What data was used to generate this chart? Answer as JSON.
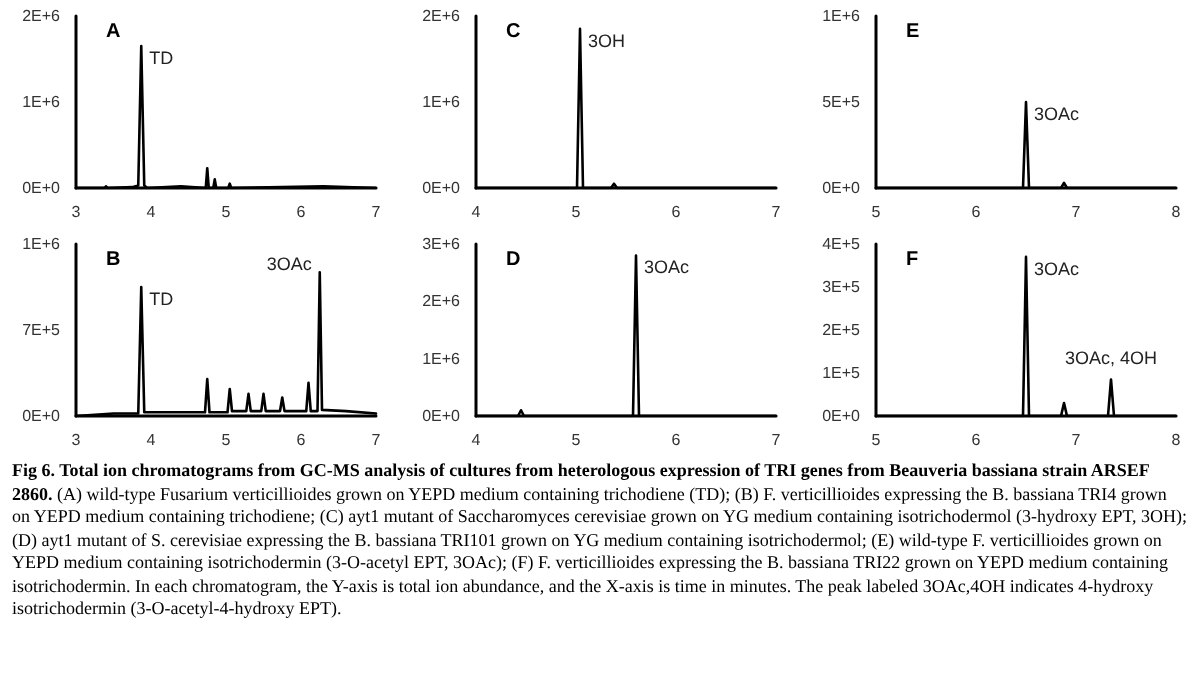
{
  "chart_data": [
    {
      "type": "line",
      "title": "A",
      "x": [
        3,
        3.38,
        3.4,
        3.42,
        3.75,
        3.83,
        3.87,
        3.91,
        3.95,
        4.4,
        4.73,
        4.75,
        4.77,
        4.83,
        4.85,
        4.87,
        5.03,
        5.05,
        5.07,
        6.3,
        7
      ],
      "series": [
        {
          "color": "#000000",
          "values": [
            0,
            0,
            20000,
            0,
            10000,
            30000,
            1650000,
            30000,
            0,
            20000,
            0,
            230000,
            0,
            0,
            100000,
            0,
            0,
            50000,
            0,
            20000,
            0
          ]
        }
      ],
      "xlim": [
        3,
        7
      ],
      "xticks": [
        3,
        4,
        5,
        6,
        7
      ],
      "ylim": [
        0,
        2000000
      ],
      "yticks": [
        {
          "value": 0,
          "label": "0E+0"
        },
        {
          "value": 1000000,
          "label": "1E+6"
        },
        {
          "value": 2000000,
          "label": "2E+6"
        }
      ],
      "annotations": [
        {
          "text": "TD",
          "x": 3.87,
          "y": 1650000
        }
      ],
      "grid": false,
      "marker": "none",
      "line_style": "solid"
    },
    {
      "type": "line",
      "title": "C",
      "x": [
        4,
        5.01,
        5.04,
        5.07,
        5.35,
        5.38,
        5.41,
        7
      ],
      "series": [
        {
          "color": "#000000",
          "values": [
            0,
            0,
            1850000,
            0,
            0,
            50000,
            0,
            0
          ]
        }
      ],
      "xlim": [
        4,
        7
      ],
      "xticks": [
        4,
        5,
        6,
        7
      ],
      "ylim": [
        0,
        2000000
      ],
      "yticks": [
        {
          "value": 0,
          "label": "0E+0"
        },
        {
          "value": 1000000,
          "label": "1E+6"
        },
        {
          "value": 2000000,
          "label": "2E+6"
        }
      ],
      "annotations": [
        {
          "text": "3OH",
          "x": 5.04,
          "y": 1850000
        }
      ],
      "grid": false,
      "marker": "none",
      "line_style": "solid"
    },
    {
      "type": "line",
      "title": "E",
      "x": [
        5,
        6.47,
        6.5,
        6.53,
        6.85,
        6.88,
        6.91,
        8
      ],
      "series": [
        {
          "color": "#000000",
          "values": [
            0,
            0,
            500000,
            0,
            0,
            30000,
            0,
            0
          ]
        }
      ],
      "xlim": [
        5,
        8
      ],
      "xticks": [
        5,
        6,
        7,
        8
      ],
      "ylim": [
        0,
        1000000
      ],
      "yticks": [
        {
          "value": 0,
          "label": "0E+0"
        },
        {
          "value": 500000,
          "label": "5E+5"
        },
        {
          "value": 1000000,
          "label": "1E+6"
        }
      ],
      "annotations": [
        {
          "text": "3OAc",
          "x": 6.5,
          "y": 500000
        }
      ],
      "grid": false,
      "marker": "none",
      "line_style": "solid"
    },
    {
      "type": "line",
      "title": "B",
      "x": [
        3,
        3.5,
        3.83,
        3.87,
        3.91,
        4.72,
        4.75,
        4.78,
        5.02,
        5.05,
        5.08,
        5.27,
        5.3,
        5.33,
        5.47,
        5.5,
        5.53,
        5.72,
        5.75,
        5.78,
        6.07,
        6.1,
        6.13,
        6.22,
        6.25,
        6.28,
        6.6,
        7
      ],
      "series": [
        {
          "color": "#000000",
          "values": [
            0,
            20000,
            20000,
            1050000,
            30000,
            30000,
            300000,
            30000,
            30000,
            220000,
            40000,
            40000,
            180000,
            40000,
            40000,
            180000,
            40000,
            40000,
            150000,
            40000,
            40000,
            270000,
            40000,
            40000,
            1170000,
            50000,
            40000,
            20000
          ]
        }
      ],
      "xlim": [
        3,
        7
      ],
      "xticks": [
        3,
        4,
        5,
        6,
        7
      ],
      "ylim": [
        0,
        1400000
      ],
      "yticks": [
        {
          "value": 0,
          "label": "0E+0"
        },
        {
          "value": 700000,
          "label": "7E+5"
        },
        {
          "value": 1400000,
          "label": "1E+6"
        }
      ],
      "annotations": [
        {
          "text": "TD",
          "x": 3.87,
          "y": 1050000
        },
        {
          "text": "3OAc",
          "x": 6.25,
          "y": 1170000
        }
      ],
      "grid": false,
      "marker": "none",
      "line_style": "solid"
    },
    {
      "type": "line",
      "title": "D",
      "x": [
        4,
        4.42,
        4.45,
        4.48,
        5.57,
        5.6,
        5.63,
        7
      ],
      "series": [
        {
          "color": "#000000",
          "values": [
            0,
            0,
            100000,
            0,
            0,
            2800000,
            0,
            0
          ]
        }
      ],
      "xlim": [
        4,
        7
      ],
      "xticks": [
        4,
        5,
        6,
        7
      ],
      "ylim": [
        0,
        3000000
      ],
      "yticks": [
        {
          "value": 0,
          "label": "0E+0"
        },
        {
          "value": 1000000,
          "label": "1E+6"
        },
        {
          "value": 2000000,
          "label": "2E+6"
        },
        {
          "value": 3000000,
          "label": "3E+6"
        }
      ],
      "annotations": [
        {
          "text": "3OAc",
          "x": 5.6,
          "y": 2800000
        }
      ],
      "grid": false,
      "marker": "none",
      "line_style": "solid"
    },
    {
      "type": "line",
      "title": "F",
      "x": [
        5,
        6.47,
        6.5,
        6.53,
        6.85,
        6.88,
        6.91,
        7.32,
        7.35,
        7.38,
        8
      ],
      "series": [
        {
          "color": "#000000",
          "values": [
            0,
            0,
            370000,
            0,
            0,
            30000,
            0,
            0,
            85000,
            0,
            0
          ]
        }
      ],
      "xlim": [
        5,
        8
      ],
      "xticks": [
        5,
        6,
        7,
        8
      ],
      "ylim": [
        0,
        400000
      ],
      "yticks": [
        {
          "value": 0,
          "label": "0E+0"
        },
        {
          "value": 100000,
          "label": "1E+5"
        },
        {
          "value": 200000,
          "label": "2E+5"
        },
        {
          "value": 300000,
          "label": "3E+5"
        },
        {
          "value": 400000,
          "label": "4E+5"
        }
      ],
      "annotations": [
        {
          "text": "3OAc",
          "x": 6.5,
          "y": 370000
        },
        {
          "text": "3OAc, 4OH",
          "x": 7.35,
          "y": 85000
        },
        "Fig 6. Total ion chromatograms from GC-MS analysis of cultures from heterologous expression of TRI genes from Beauveria bassiana strain ARSEF 2860.",
        "(A) wild-type Fusarium verticillioides grown on YEPD medium containing trichodiene (TD); (B) F. verticillioides expressing the B. bassiana TRI4 grown on YEPD medium containing trichodiene; (C) ayt1 mutant of Saccharomyces cerevisiae grown on YG medium containing isotrichodermol (3-hydroxy EPT, 3OH); (D) ayt1 mutant of S. cerevisiae expressing the B. bassiana TRI101 grown on YG medium containing isotrichodermol; (E) wild-type F. verticillioides grown on YEPD medium containing isotrichodermin (3-O-acetyl EPT, 3OAc); (F) F. verticillioides expressing the B. bassiana TRI22 grown on YEPD medium containing isotrichodermin. In each chromatogram, the Y-axis is total ion abundance, and the X-axis is time in minutes. The peak labeled 3OAc,4OH indicates 4-hydroxy isotrichodermin (3-O-acetyl-4-hydroxy EPT)."
      ],
      "grid": false,
      "marker": "none",
      "line_style": "solid"
    }
  ]
}
